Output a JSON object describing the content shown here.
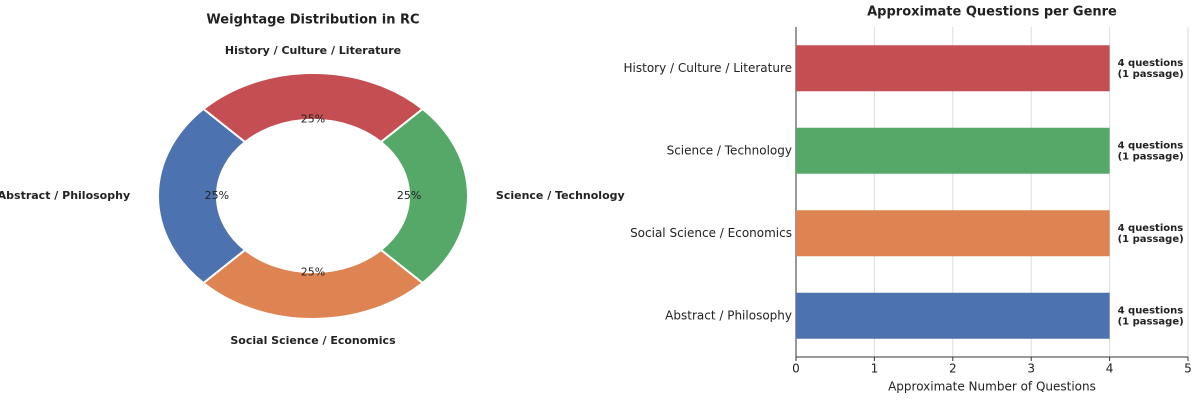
{
  "chart_data": [
    {
      "type": "donut",
      "title": "Weightage Distribution in RC",
      "categories": [
        "History / Culture / Literature",
        "Science / Technology",
        "Social Science / Economics",
        "Abstract / Philosophy"
      ],
      "values": [
        25,
        25,
        25,
        25
      ],
      "value_labels": [
        "25%",
        "25%",
        "25%",
        "25%"
      ],
      "colors": [
        "#c44e52",
        "#55a868",
        "#dd8452",
        "#4c72b0"
      ]
    },
    {
      "type": "hbar",
      "title": "Approximate Questions per Genre",
      "categories": [
        "History / Culture / Literature",
        "Science / Technology",
        "Social Science / Economics",
        "Abstract / Philosophy"
      ],
      "values": [
        4,
        4,
        4,
        4
      ],
      "value_labels": [
        "4 questions\n(1 passage)",
        "4 questions\n(1 passage)",
        "4 questions\n(1 passage)",
        "4 questions\n(1 passage)"
      ],
      "colors": [
        "#c44e52",
        "#55a868",
        "#dd8452",
        "#4c72b0"
      ],
      "xlabel": "Approximate Number of Questions",
      "xlim": [
        0,
        5
      ],
      "xticks": [
        0,
        1,
        2,
        3,
        4,
        5
      ],
      "grid": true
    }
  ]
}
